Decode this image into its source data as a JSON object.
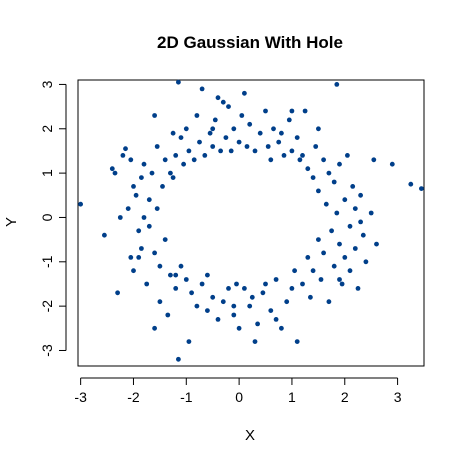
{
  "chart_data": {
    "type": "scatter",
    "title": "2D Gaussian With Hole",
    "xlabel": "X",
    "ylabel": "Y",
    "xlim": [
      -3.05,
      3.5
    ],
    "ylim": [
      -3.35,
      3.1
    ],
    "xticks": [
      -3,
      -2,
      -1,
      0,
      1,
      2,
      3
    ],
    "yticks": [
      -3,
      -2,
      -1,
      0,
      1,
      2,
      3
    ],
    "grid": false,
    "point_color": "#003f8a",
    "points": [
      [
        -3.0,
        0.3
      ],
      [
        -2.55,
        -0.4
      ],
      [
        -2.4,
        1.1
      ],
      [
        -2.35,
        1.0
      ],
      [
        -2.3,
        -1.7
      ],
      [
        -2.2,
        1.4
      ],
      [
        -2.15,
        1.55
      ],
      [
        -2.1,
        0.2
      ],
      [
        -2.05,
        -0.9
      ],
      [
        -2.0,
        0.7
      ],
      [
        -2.0,
        -1.2
      ],
      [
        -1.95,
        0.5
      ],
      [
        -1.9,
        -0.3
      ],
      [
        -1.85,
        0.9
      ],
      [
        -1.85,
        -0.7
      ],
      [
        -1.8,
        1.2
      ],
      [
        -1.8,
        0.0
      ],
      [
        -1.75,
        -1.5
      ],
      [
        -1.7,
        0.4
      ],
      [
        -1.7,
        -0.2
      ],
      [
        -1.65,
        1.0
      ],
      [
        -1.6,
        -0.8
      ],
      [
        -1.6,
        -2.5
      ],
      [
        -1.55,
        1.6
      ],
      [
        -1.55,
        0.2
      ],
      [
        -1.5,
        -1.1
      ],
      [
        -1.5,
        -1.9
      ],
      [
        -1.45,
        0.7
      ],
      [
        -1.4,
        1.3
      ],
      [
        -1.4,
        -0.5
      ],
      [
        -1.35,
        -2.2
      ],
      [
        -1.3,
        1.0
      ],
      [
        -1.3,
        -1.3
      ],
      [
        -1.25,
        0.9
      ],
      [
        -1.2,
        -1.6
      ],
      [
        -1.2,
        1.4
      ],
      [
        -1.15,
        -3.2
      ],
      [
        -1.1,
        -1.1
      ],
      [
        -1.1,
        1.8
      ],
      [
        -1.05,
        1.2
      ],
      [
        -1.0,
        -1.4
      ],
      [
        -1.0,
        2.0
      ],
      [
        -0.95,
        1.5
      ],
      [
        -0.9,
        -1.7
      ],
      [
        -0.85,
        1.3
      ],
      [
        -0.8,
        -2.0
      ],
      [
        -0.8,
        2.3
      ],
      [
        -0.75,
        1.7
      ],
      [
        -0.7,
        -1.5
      ],
      [
        -0.7,
        2.9
      ],
      [
        -0.65,
        1.4
      ],
      [
        -0.6,
        -2.1
      ],
      [
        -0.55,
        1.9
      ],
      [
        -0.5,
        -1.8
      ],
      [
        -0.5,
        1.6
      ],
      [
        -0.45,
        2.2
      ],
      [
        -0.4,
        -2.3
      ],
      [
        -0.35,
        1.5
      ],
      [
        -0.3,
        -1.9
      ],
      [
        -0.3,
        2.6
      ],
      [
        -0.25,
        1.8
      ],
      [
        -0.2,
        -1.6
      ],
      [
        -0.2,
        2.5
      ],
      [
        -0.15,
        1.5
      ],
      [
        -0.1,
        -2.2
      ],
      [
        -0.1,
        2.0
      ],
      [
        -0.05,
        -1.5
      ],
      [
        0.0,
        1.7
      ],
      [
        0.0,
        -2.5
      ],
      [
        0.05,
        2.3
      ],
      [
        0.1,
        -1.6
      ],
      [
        0.1,
        2.8
      ],
      [
        0.15,
        1.6
      ],
      [
        0.2,
        -2.0
      ],
      [
        0.2,
        2.1
      ],
      [
        0.25,
        -1.8
      ],
      [
        0.3,
        1.5
      ],
      [
        0.35,
        -2.4
      ],
      [
        0.4,
        1.9
      ],
      [
        0.45,
        -1.7
      ],
      [
        0.5,
        2.4
      ],
      [
        0.5,
        -1.5
      ],
      [
        0.55,
        1.6
      ],
      [
        0.6,
        -2.1
      ],
      [
        0.65,
        2.0
      ],
      [
        0.7,
        -1.4
      ],
      [
        0.75,
        1.7
      ],
      [
        0.8,
        -2.5
      ],
      [
        0.85,
        1.4
      ],
      [
        0.9,
        -1.9
      ],
      [
        0.95,
        2.2
      ],
      [
        1.0,
        -1.6
      ],
      [
        1.0,
        1.5
      ],
      [
        1.05,
        -1.2
      ],
      [
        1.1,
        1.8
      ],
      [
        1.1,
        -2.8
      ],
      [
        1.15,
        1.3
      ],
      [
        1.2,
        -1.5
      ],
      [
        1.25,
        2.4
      ],
      [
        1.3,
        -0.9
      ],
      [
        1.3,
        1.1
      ],
      [
        1.35,
        -1.8
      ],
      [
        1.4,
        0.9
      ],
      [
        1.4,
        -1.2
      ],
      [
        1.45,
        1.6
      ],
      [
        1.5,
        -0.5
      ],
      [
        1.5,
        0.6
      ],
      [
        1.55,
        -1.4
      ],
      [
        1.6,
        1.3
      ],
      [
        1.6,
        -0.8
      ],
      [
        1.65,
        0.3
      ],
      [
        1.7,
        -1.9
      ],
      [
        1.7,
        1.0
      ],
      [
        1.75,
        -0.3
      ],
      [
        1.8,
        0.8
      ],
      [
        1.8,
        -1.1
      ],
      [
        1.85,
        3.0
      ],
      [
        1.85,
        0.1
      ],
      [
        1.9,
        -0.6
      ],
      [
        1.9,
        1.2
      ],
      [
        1.95,
        -1.5
      ],
      [
        2.0,
        0.4
      ],
      [
        2.0,
        -0.9
      ],
      [
        2.05,
        1.4
      ],
      [
        2.1,
        -0.2
      ],
      [
        2.1,
        -1.2
      ],
      [
        2.15,
        0.7
      ],
      [
        2.2,
        -0.7
      ],
      [
        2.2,
        0.2
      ],
      [
        2.25,
        -1.6
      ],
      [
        2.3,
        0.5
      ],
      [
        2.35,
        -0.4
      ],
      [
        2.4,
        -1.0
      ],
      [
        2.5,
        0.1
      ],
      [
        2.55,
        1.3
      ],
      [
        2.6,
        -0.6
      ],
      [
        2.9,
        1.2
      ],
      [
        3.25,
        0.75
      ],
      [
        3.45,
        0.65
      ],
      [
        -0.95,
        -2.8
      ],
      [
        -1.25,
        1.9
      ],
      [
        -1.6,
        2.3
      ],
      [
        -2.05,
        1.3
      ],
      [
        -0.6,
        -1.3
      ],
      [
        0.6,
        1.3
      ],
      [
        -1.9,
        -0.9
      ],
      [
        1.9,
        -1.4
      ],
      [
        1.0,
        2.4
      ],
      [
        -0.4,
        2.7
      ],
      [
        0.3,
        -2.8
      ],
      [
        -1.15,
        3.05
      ],
      [
        1.5,
        2.0
      ],
      [
        0.7,
        -2.3
      ],
      [
        -0.1,
        -2.0
      ],
      [
        -0.5,
        2.0
      ],
      [
        0.8,
        1.9
      ],
      [
        -2.25,
        0.0
      ],
      [
        2.3,
        -0.1
      ],
      [
        1.2,
        1.4
      ],
      [
        -1.2,
        -1.3
      ]
    ]
  }
}
